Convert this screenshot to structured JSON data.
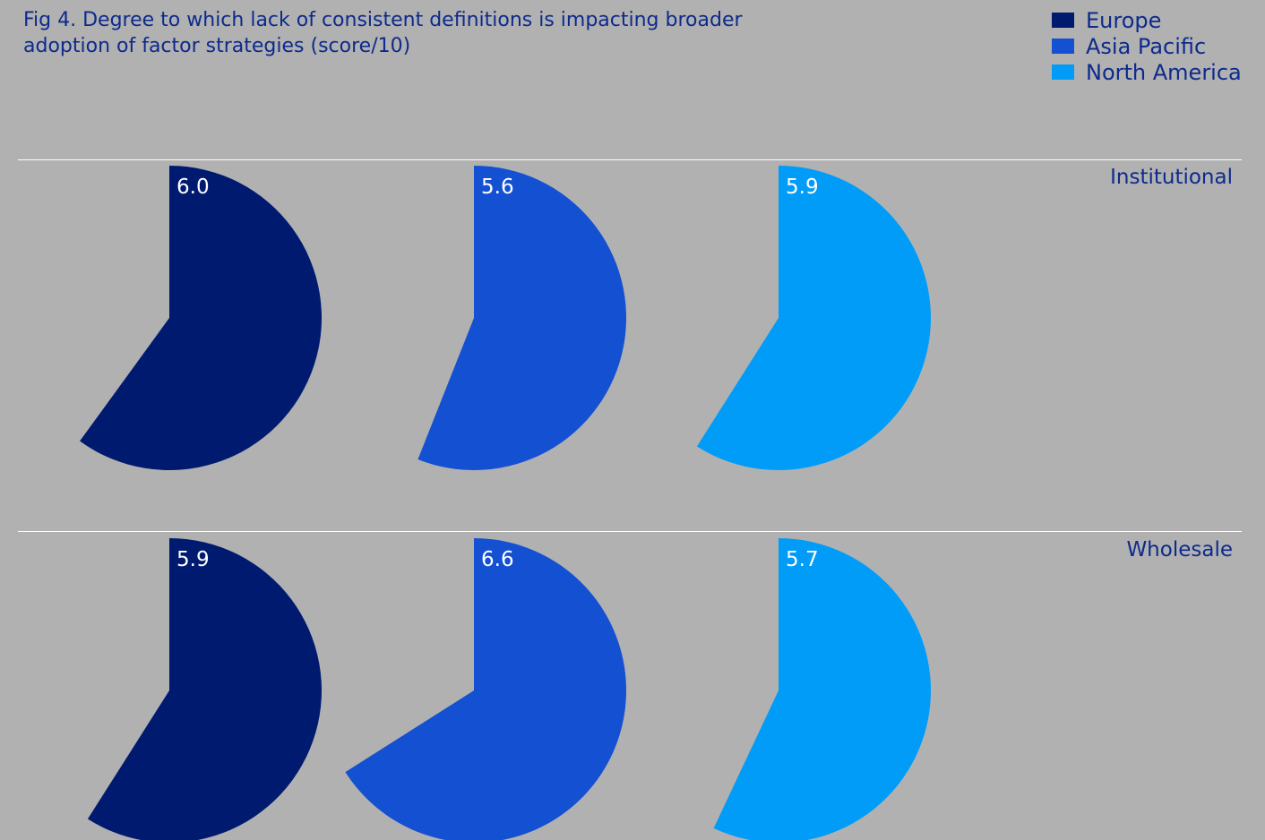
{
  "chart_data": {
    "type": "pie",
    "title_lines": [
      "Fig 4. Degree to which lack of consistent definitions is impacting broader",
      "adoption of factor strategies (score/10)"
    ],
    "max": 10,
    "legend": [
      {
        "name": "Europe",
        "color": "#001a70"
      },
      {
        "name": "Asia Pacific",
        "color": "#1450d2"
      },
      {
        "name": "North America",
        "color": "#009cf8"
      }
    ],
    "rows": [
      {
        "label": "Institutional",
        "values": [
          6.0,
          5.6,
          5.9
        ],
        "value_labels": [
          "6.0",
          "5.6",
          "5.9"
        ]
      },
      {
        "label": "Wholesale",
        "values": [
          5.9,
          6.6,
          5.7
        ],
        "value_labels": [
          "5.9",
          "6.6",
          "5.7"
        ]
      }
    ]
  }
}
